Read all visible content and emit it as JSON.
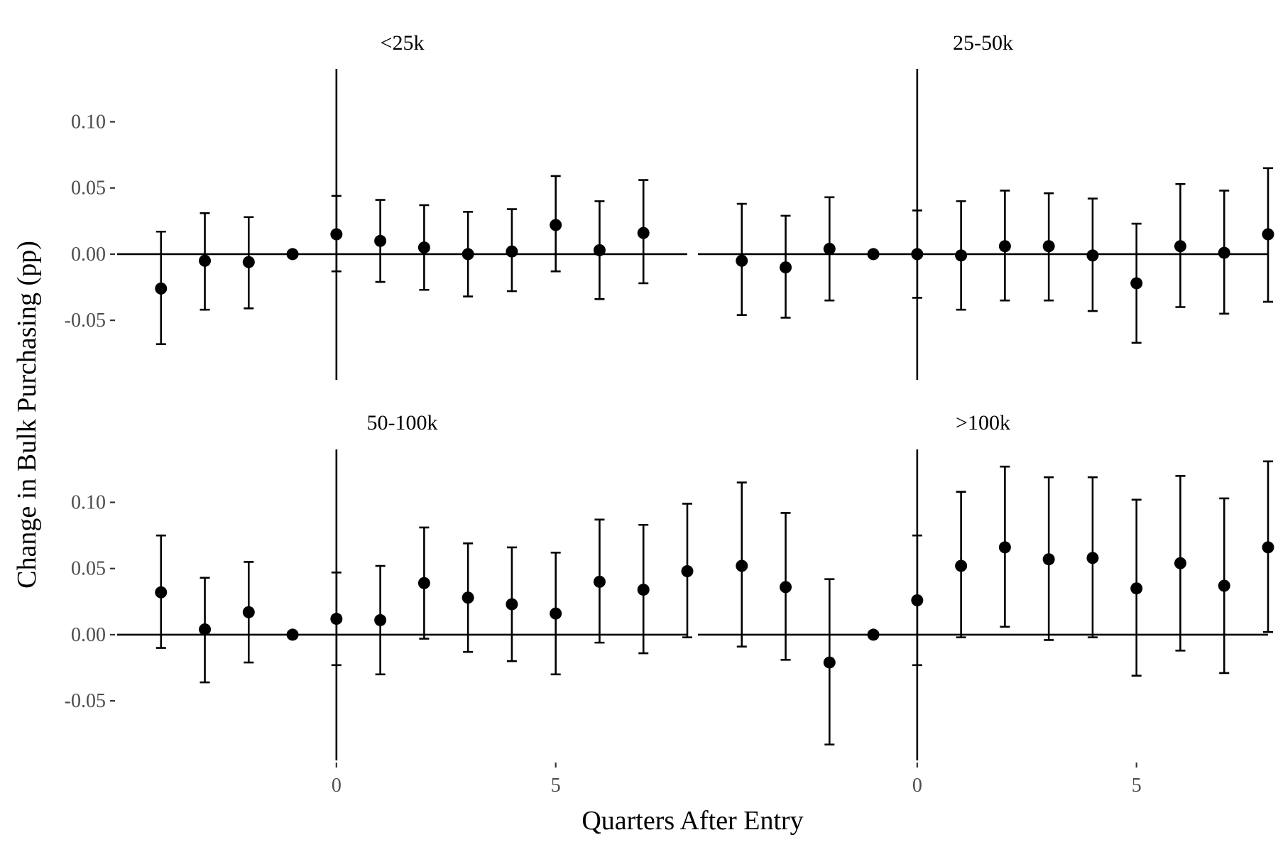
{
  "chart_data": {
    "type": "scatter",
    "subtype": "faceted point estimates with error bars",
    "xlabel": "Quarters After Entry",
    "ylabel": "Change in Bulk Purchasing (pp)",
    "xlim": [
      -5,
      8
    ],
    "ylim": [
      -0.095,
      0.14
    ],
    "x_ticks": [
      0,
      5
    ],
    "y_ticks": [
      -0.05,
      0.0,
      0.05,
      0.1
    ],
    "y_tick_labels": [
      "-0.05",
      "0.00",
      "0.05",
      "0.10"
    ],
    "reference_lines": {
      "horizontal_y": 0,
      "vertical_x": 0
    },
    "grid": false,
    "legend": "none",
    "facet_layout": "2x2",
    "panels": [
      {
        "title": "<25k",
        "points": [
          {
            "x": -4,
            "y": -0.026,
            "lo": -0.068,
            "hi": 0.017
          },
          {
            "x": -3,
            "y": -0.005,
            "lo": -0.042,
            "hi": 0.031
          },
          {
            "x": -2,
            "y": -0.006,
            "lo": -0.041,
            "hi": 0.028
          },
          {
            "x": -1,
            "y": 0.0,
            "lo": null,
            "hi": null
          },
          {
            "x": 0,
            "y": 0.015,
            "lo": -0.013,
            "hi": 0.044
          },
          {
            "x": 1,
            "y": 0.01,
            "lo": -0.021,
            "hi": 0.041
          },
          {
            "x": 2,
            "y": 0.005,
            "lo": -0.027,
            "hi": 0.037
          },
          {
            "x": 3,
            "y": 0.0,
            "lo": -0.032,
            "hi": 0.032
          },
          {
            "x": 4,
            "y": 0.002,
            "lo": -0.028,
            "hi": 0.034
          },
          {
            "x": 5,
            "y": 0.022,
            "lo": -0.013,
            "hi": 0.059
          },
          {
            "x": 6,
            "y": 0.003,
            "lo": -0.034,
            "hi": 0.04
          },
          {
            "x": 7,
            "y": 0.016,
            "lo": -0.022,
            "hi": 0.056
          }
        ]
      },
      {
        "title": "25-50k",
        "points": [
          {
            "x": -4,
            "y": -0.005,
            "lo": -0.046,
            "hi": 0.038
          },
          {
            "x": -3,
            "y": -0.01,
            "lo": -0.048,
            "hi": 0.029
          },
          {
            "x": -2,
            "y": 0.004,
            "lo": -0.035,
            "hi": 0.043
          },
          {
            "x": -1,
            "y": 0.0,
            "lo": null,
            "hi": null
          },
          {
            "x": 0,
            "y": 0.0,
            "lo": -0.033,
            "hi": 0.033
          },
          {
            "x": 1,
            "y": -0.001,
            "lo": -0.042,
            "hi": 0.04
          },
          {
            "x": 2,
            "y": 0.006,
            "lo": -0.035,
            "hi": 0.048
          },
          {
            "x": 3,
            "y": 0.006,
            "lo": -0.035,
            "hi": 0.046
          },
          {
            "x": 4,
            "y": -0.001,
            "lo": -0.043,
            "hi": 0.042
          },
          {
            "x": 5,
            "y": -0.022,
            "lo": -0.067,
            "hi": 0.023
          },
          {
            "x": 6,
            "y": 0.006,
            "lo": -0.04,
            "hi": 0.053
          },
          {
            "x": 7,
            "y": 0.001,
            "lo": -0.045,
            "hi": 0.048
          },
          {
            "x": 8,
            "y": 0.015,
            "lo": -0.036,
            "hi": 0.065
          }
        ]
      },
      {
        "title": "50-100k",
        "points": [
          {
            "x": -4,
            "y": 0.032,
            "lo": -0.01,
            "hi": 0.075
          },
          {
            "x": -3,
            "y": 0.004,
            "lo": -0.036,
            "hi": 0.043
          },
          {
            "x": -2,
            "y": 0.017,
            "lo": -0.021,
            "hi": 0.055
          },
          {
            "x": -1,
            "y": 0.0,
            "lo": null,
            "hi": null
          },
          {
            "x": 0,
            "y": 0.012,
            "lo": -0.023,
            "hi": 0.047
          },
          {
            "x": 1,
            "y": 0.011,
            "lo": -0.03,
            "hi": 0.052
          },
          {
            "x": 2,
            "y": 0.039,
            "lo": -0.003,
            "hi": 0.081
          },
          {
            "x": 3,
            "y": 0.028,
            "lo": -0.013,
            "hi": 0.069
          },
          {
            "x": 4,
            "y": 0.023,
            "lo": -0.02,
            "hi": 0.066
          },
          {
            "x": 5,
            "y": 0.016,
            "lo": -0.03,
            "hi": 0.062
          },
          {
            "x": 6,
            "y": 0.04,
            "lo": -0.006,
            "hi": 0.087
          },
          {
            "x": 7,
            "y": 0.034,
            "lo": -0.014,
            "hi": 0.083
          },
          {
            "x": 8,
            "y": 0.048,
            "lo": -0.002,
            "hi": 0.099
          }
        ]
      },
      {
        "title": ">100k",
        "points": [
          {
            "x": -4,
            "y": 0.052,
            "lo": -0.009,
            "hi": 0.115
          },
          {
            "x": -3,
            "y": 0.036,
            "lo": -0.019,
            "hi": 0.092
          },
          {
            "x": -2,
            "y": -0.021,
            "lo": -0.083,
            "hi": 0.042
          },
          {
            "x": -1,
            "y": 0.0,
            "lo": null,
            "hi": null
          },
          {
            "x": 0,
            "y": 0.026,
            "lo": -0.023,
            "hi": 0.075
          },
          {
            "x": 1,
            "y": 0.052,
            "lo": -0.002,
            "hi": 0.108
          },
          {
            "x": 2,
            "y": 0.066,
            "lo": 0.006,
            "hi": 0.127
          },
          {
            "x": 3,
            "y": 0.057,
            "lo": -0.004,
            "hi": 0.119
          },
          {
            "x": 4,
            "y": 0.058,
            "lo": -0.002,
            "hi": 0.119
          },
          {
            "x": 5,
            "y": 0.035,
            "lo": -0.031,
            "hi": 0.102
          },
          {
            "x": 6,
            "y": 0.054,
            "lo": -0.012,
            "hi": 0.12
          },
          {
            "x": 7,
            "y": 0.037,
            "lo": -0.029,
            "hi": 0.103
          },
          {
            "x": 8,
            "y": 0.066,
            "lo": 0.002,
            "hi": 0.131
          }
        ]
      }
    ]
  }
}
